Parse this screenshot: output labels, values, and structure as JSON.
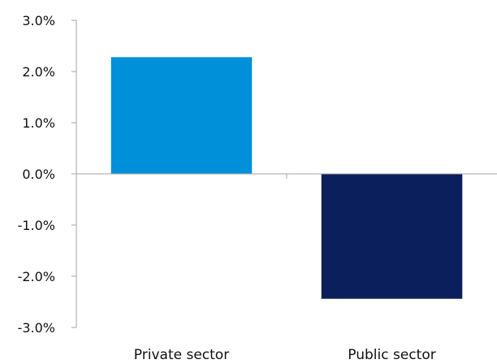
{
  "chart_data": {
    "type": "bar",
    "categories": [
      "Private sector",
      "Public sector"
    ],
    "values": [
      2.28,
      -2.44
    ],
    "title": "",
    "xlabel": "",
    "ylabel": "",
    "ylim": [
      -3.0,
      3.0
    ],
    "yticks": [
      3.0,
      2.0,
      1.0,
      0.0,
      -1.0,
      -2.0,
      -3.0
    ],
    "ytick_labels": [
      "3.0%",
      "2.0%",
      "1.0%",
      "0.0%",
      "-1.0%",
      "-2.0%",
      "-3.0%"
    ],
    "grid": false,
    "bar_colors": [
      "#0090d9",
      "#0b1f5c"
    ],
    "axis_color": "#a6a6a6"
  }
}
